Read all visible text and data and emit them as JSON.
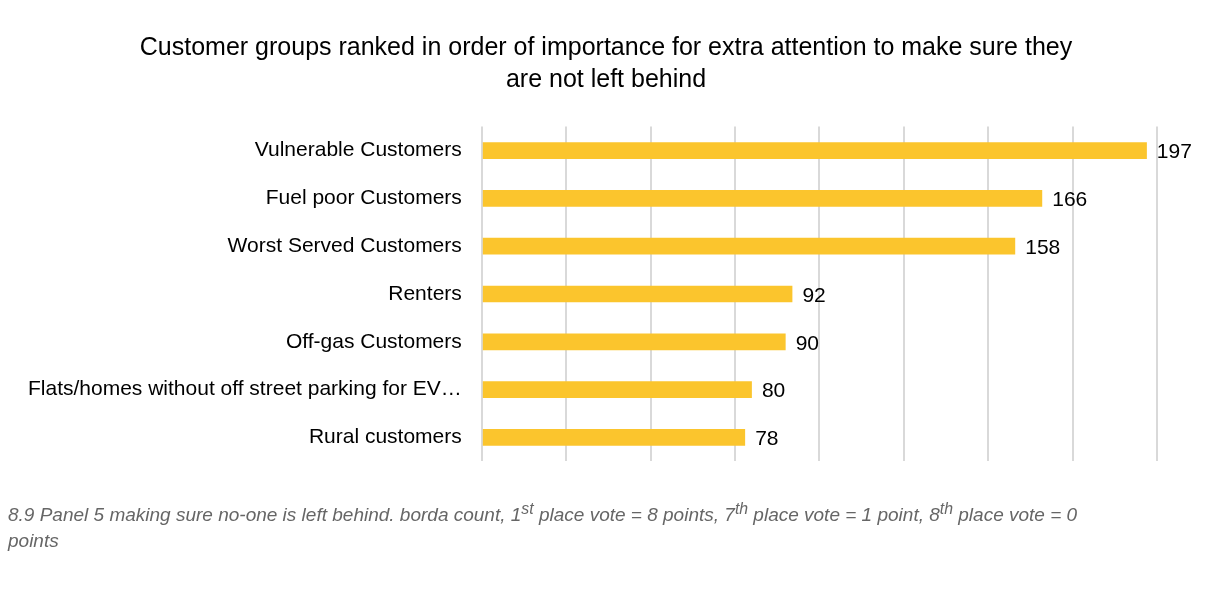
{
  "chart_data": {
    "type": "bar",
    "orientation": "horizontal",
    "title": "Customer groups ranked in order of importance for extra attention to make sure they are not left behind",
    "categories": [
      "Vulnerable Customers",
      "Fuel poor Customers",
      "Worst Served Customers",
      "Renters",
      "Off-gas Customers",
      "Flats/homes without off street parking for EV…",
      "Rural customers"
    ],
    "values": [
      197,
      166,
      158,
      92,
      90,
      80,
      78
    ],
    "color": "#fbc52d",
    "xlim": [
      0,
      200
    ],
    "xticks": [
      {
        "value": 0,
        "label": null
      },
      {
        "value": 25,
        "label": null
      },
      {
        "value": 50,
        "label": null
      },
      {
        "value": 75,
        "label": null
      },
      {
        "value": 100,
        "label": null
      },
      {
        "value": 125,
        "label": null
      },
      {
        "value": 150,
        "label": null
      },
      {
        "value": 175,
        "label": null
      },
      {
        "value": 200,
        "label": null
      }
    ],
    "grid": "x",
    "tick_labels": "y",
    "data_labels": true,
    "legend": false,
    "annotations": [
      "8.9 Panel 5 making sure no-one is left behind. borda count, 1$^{st}$ place vote = 8 points, 7$^{th}$ place vote = 1 point, 8$^{th}$ place vote = 0 points"
    ]
  }
}
